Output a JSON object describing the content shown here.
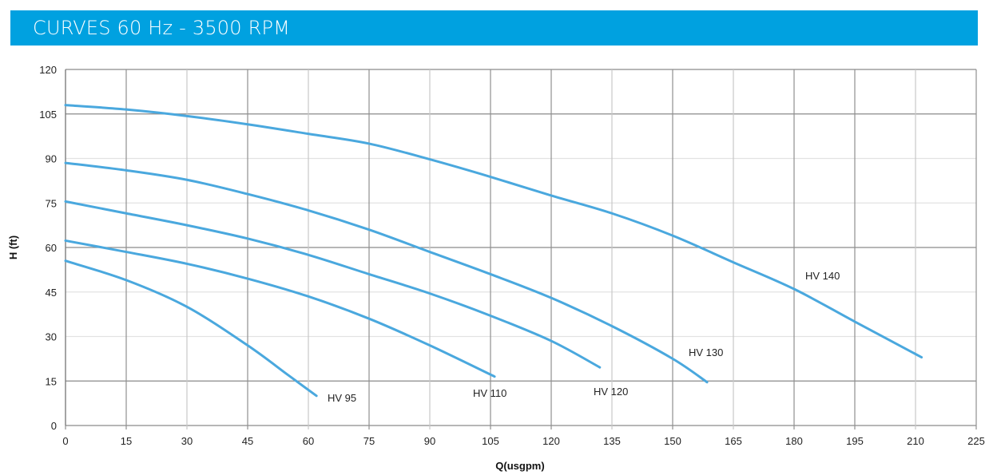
{
  "header": {
    "title": "CURVES 60 Hz - 3500 RPM"
  },
  "colors": {
    "banner": "#00a1e0",
    "curve": "#4aa8de"
  },
  "chart_data": {
    "type": "line",
    "title": "",
    "xlabel": "Q(usgpm)",
    "ylabel": "H (ft)",
    "xlim": [
      0,
      225
    ],
    "ylim": [
      0,
      120
    ],
    "xticks": [
      0,
      15,
      30,
      45,
      60,
      75,
      90,
      105,
      120,
      135,
      150,
      165,
      180,
      195,
      210,
      225
    ],
    "yticks": [
      0,
      15,
      30,
      45,
      60,
      75,
      90,
      105,
      120
    ],
    "grid": true,
    "series": [
      {
        "name": "HV 95",
        "x": [
          0,
          15,
          30,
          45,
          55,
          62
        ],
        "y": [
          55.5,
          49,
          40,
          27,
          17,
          10
        ]
      },
      {
        "name": "HV 110",
        "x": [
          0,
          15,
          30,
          45,
          60,
          75,
          90,
          106
        ],
        "y": [
          62.3,
          58.5,
          54.5,
          49.5,
          43.5,
          36,
          27,
          16.5
        ]
      },
      {
        "name": "HV 120",
        "x": [
          0,
          15,
          30,
          45,
          60,
          75,
          90,
          105,
          120,
          132
        ],
        "y": [
          75.5,
          71.5,
          67.5,
          63,
          57.5,
          51,
          44.5,
          37,
          28.5,
          19.6
        ]
      },
      {
        "name": "HV 130",
        "x": [
          0,
          15,
          30,
          45,
          60,
          75,
          90,
          105,
          120,
          135,
          150,
          158.5
        ],
        "y": [
          88.5,
          86,
          82.8,
          78,
          72.5,
          66,
          58.5,
          51,
          43,
          33.5,
          22.5,
          14.6
        ]
      },
      {
        "name": "HV 140",
        "x": [
          0,
          15,
          30,
          45,
          60,
          75,
          90,
          105,
          120,
          135,
          150,
          165,
          180,
          195,
          211.5
        ],
        "y": [
          108,
          106.5,
          104.3,
          101.5,
          98.3,
          95,
          89.7,
          83.8,
          77.5,
          71.5,
          64,
          55,
          46,
          35,
          23
        ]
      }
    ]
  }
}
